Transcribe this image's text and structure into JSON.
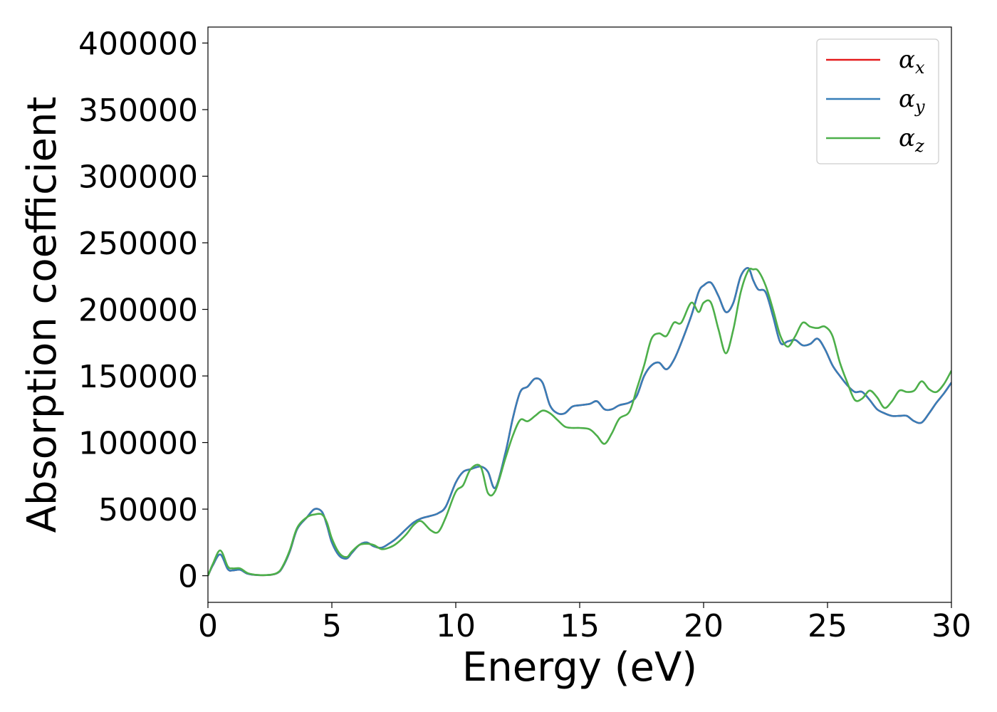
{
  "chart_data": {
    "type": "line",
    "title": "",
    "xlabel": "Energy (eV)",
    "ylabel": "Absorption coefficient",
    "xlim": [
      0,
      30
    ],
    "ylim": [
      -20000,
      412000
    ],
    "xticks": [
      0,
      5,
      10,
      15,
      20,
      25,
      30
    ],
    "yticks": [
      0,
      50000,
      100000,
      150000,
      200000,
      250000,
      300000,
      350000,
      400000
    ],
    "grid": false,
    "legend_position": "top-right",
    "series": [
      {
        "name": "α_x",
        "legend_base": "α",
        "legend_sub": "x",
        "color": "#e41a1c",
        "x": [
          0,
          0.2,
          0.5,
          0.8,
          1.0,
          1.3,
          1.6,
          2.0,
          2.5,
          2.8,
          3.0,
          3.3,
          3.6,
          4.0,
          4.3,
          4.6,
          4.8,
          5.0,
          5.3,
          5.6,
          5.8,
          6.1,
          6.4,
          6.7,
          7.0,
          7.3,
          7.6,
          8.0,
          8.3,
          8.6,
          9.0,
          9.3,
          9.6,
          10.0,
          10.3,
          10.6,
          11.0,
          11.3,
          11.6,
          12.0,
          12.3,
          12.6,
          12.9,
          13.2,
          13.5,
          13.8,
          14.1,
          14.4,
          14.7,
          15.0,
          15.4,
          15.7,
          16.0,
          16.3,
          16.6,
          17.0,
          17.3,
          17.6,
          17.9,
          18.2,
          18.5,
          18.8,
          19.1,
          19.5,
          19.8,
          20.0,
          20.3,
          20.6,
          20.9,
          21.2,
          21.5,
          21.8,
          22.0,
          22.2,
          22.5,
          22.8,
          23.1,
          23.4,
          23.7,
          24.0,
          24.3,
          24.6,
          24.9,
          25.2,
          25.5,
          25.8,
          26.1,
          26.4,
          26.7,
          27.0,
          27.3,
          27.6,
          27.9,
          28.2,
          28.5,
          28.8,
          29.1,
          29.4,
          29.7,
          30.0
        ],
        "y": [
          0,
          8000,
          16000,
          5000,
          4000,
          4500,
          1500,
          500,
          600,
          2000,
          6000,
          18000,
          35000,
          44000,
          50000,
          48000,
          38000,
          25000,
          15000,
          13000,
          17000,
          23000,
          25000,
          22000,
          21000,
          24000,
          28000,
          35000,
          40000,
          43000,
          45000,
          47000,
          52000,
          70000,
          78000,
          80000,
          82000,
          78000,
          66000,
          92000,
          118000,
          138000,
          142000,
          148000,
          145000,
          128000,
          122000,
          122000,
          127000,
          128000,
          129000,
          131000,
          125000,
          125000,
          128000,
          130000,
          135000,
          150000,
          158000,
          160000,
          155000,
          162000,
          175000,
          195000,
          213000,
          218000,
          220000,
          210000,
          198000,
          205000,
          225000,
          231000,
          222000,
          215000,
          213000,
          195000,
          175000,
          176000,
          177000,
          173000,
          174000,
          178000,
          170000,
          158000,
          150000,
          143000,
          138000,
          138000,
          132000,
          125000,
          122000,
          120000,
          120000,
          120000,
          116000,
          115000,
          122000,
          130000,
          137000,
          145000
        ]
      },
      {
        "name": "α_y",
        "legend_base": "α",
        "legend_sub": "y",
        "color": "#377eb8",
        "x": [
          0,
          0.2,
          0.5,
          0.8,
          1.0,
          1.3,
          1.6,
          2.0,
          2.5,
          2.8,
          3.0,
          3.3,
          3.6,
          4.0,
          4.3,
          4.6,
          4.8,
          5.0,
          5.3,
          5.6,
          5.8,
          6.1,
          6.4,
          6.7,
          7.0,
          7.3,
          7.6,
          8.0,
          8.3,
          8.6,
          9.0,
          9.3,
          9.6,
          10.0,
          10.3,
          10.6,
          11.0,
          11.3,
          11.6,
          12.0,
          12.3,
          12.6,
          12.9,
          13.2,
          13.5,
          13.8,
          14.1,
          14.4,
          14.7,
          15.0,
          15.4,
          15.7,
          16.0,
          16.3,
          16.6,
          17.0,
          17.3,
          17.6,
          17.9,
          18.2,
          18.5,
          18.8,
          19.1,
          19.5,
          19.8,
          20.0,
          20.3,
          20.6,
          20.9,
          21.2,
          21.5,
          21.8,
          22.0,
          22.2,
          22.5,
          22.8,
          23.1,
          23.4,
          23.7,
          24.0,
          24.3,
          24.6,
          24.9,
          25.2,
          25.5,
          25.8,
          26.1,
          26.4,
          26.7,
          27.0,
          27.3,
          27.6,
          27.9,
          28.2,
          28.5,
          28.8,
          29.1,
          29.4,
          29.7,
          30.0
        ],
        "y": [
          0,
          8000,
          16000,
          5000,
          4000,
          4500,
          1500,
          500,
          600,
          2000,
          6000,
          18000,
          35000,
          44000,
          50000,
          48000,
          38000,
          25000,
          15000,
          13000,
          17000,
          23000,
          25000,
          22000,
          21000,
          24000,
          28000,
          35000,
          40000,
          43000,
          45000,
          47000,
          52000,
          70000,
          78000,
          80000,
          82000,
          78000,
          66000,
          92000,
          118000,
          138000,
          142000,
          148000,
          145000,
          128000,
          122000,
          122000,
          127000,
          128000,
          129000,
          131000,
          125000,
          125000,
          128000,
          130000,
          135000,
          150000,
          158000,
          160000,
          155000,
          162000,
          175000,
          195000,
          213000,
          218000,
          220000,
          210000,
          198000,
          205000,
          225000,
          231000,
          222000,
          215000,
          213000,
          195000,
          175000,
          176000,
          177000,
          173000,
          174000,
          178000,
          170000,
          158000,
          150000,
          143000,
          138000,
          138000,
          132000,
          125000,
          122000,
          120000,
          120000,
          120000,
          116000,
          115000,
          122000,
          130000,
          137000,
          145000
        ]
      },
      {
        "name": "α_z",
        "legend_base": "α",
        "legend_sub": "z",
        "color": "#4daf4a",
        "x": [
          0,
          0.2,
          0.5,
          0.8,
          1.0,
          1.3,
          1.6,
          2.0,
          2.5,
          2.8,
          3.0,
          3.3,
          3.6,
          4.0,
          4.3,
          4.6,
          4.8,
          5.0,
          5.3,
          5.6,
          5.8,
          6.1,
          6.4,
          6.7,
          7.0,
          7.3,
          7.6,
          8.0,
          8.3,
          8.6,
          9.0,
          9.3,
          9.6,
          10.0,
          10.3,
          10.6,
          11.0,
          11.3,
          11.6,
          12.0,
          12.3,
          12.6,
          12.9,
          13.2,
          13.5,
          13.8,
          14.1,
          14.4,
          14.7,
          15.0,
          15.4,
          15.7,
          16.0,
          16.3,
          16.6,
          17.0,
          17.3,
          17.6,
          17.9,
          18.2,
          18.5,
          18.8,
          19.1,
          19.5,
          19.8,
          20.0,
          20.3,
          20.6,
          20.9,
          21.2,
          21.5,
          21.8,
          22.0,
          22.2,
          22.5,
          22.8,
          23.1,
          23.4,
          23.7,
          24.0,
          24.3,
          24.6,
          24.9,
          25.2,
          25.5,
          25.8,
          26.1,
          26.4,
          26.7,
          27.0,
          27.3,
          27.6,
          27.9,
          28.2,
          28.5,
          28.8,
          29.1,
          29.4,
          29.7,
          30.0
        ],
        "y": [
          0,
          9000,
          19000,
          7000,
          5500,
          5500,
          2000,
          600,
          700,
          2200,
          6500,
          19000,
          36000,
          44000,
          46000,
          46000,
          40000,
          28000,
          17000,
          14000,
          18000,
          23000,
          24000,
          23000,
          20000,
          21000,
          24000,
          31000,
          38000,
          41000,
          34000,
          33000,
          44000,
          63000,
          68000,
          80000,
          82000,
          62000,
          64000,
          88000,
          105000,
          117000,
          116000,
          120000,
          124000,
          122000,
          117000,
          112000,
          111000,
          111000,
          110000,
          105000,
          99000,
          107000,
          118000,
          123000,
          140000,
          158000,
          178000,
          182000,
          180000,
          190000,
          190000,
          205000,
          198000,
          205000,
          205000,
          185000,
          167000,
          185000,
          213000,
          229000,
          230000,
          229000,
          218000,
          200000,
          180000,
          172000,
          180000,
          190000,
          187000,
          186000,
          187000,
          180000,
          160000,
          145000,
          132000,
          133000,
          139000,
          134000,
          126000,
          131000,
          139000,
          138000,
          139000,
          146000,
          140000,
          138000,
          144000,
          154000
        ]
      }
    ]
  }
}
